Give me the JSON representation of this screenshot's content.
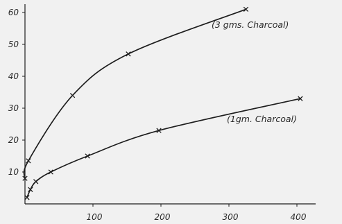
{
  "chart_data": {
    "type": "line",
    "title": "",
    "xlabel": "",
    "ylabel": "",
    "xlim": [
      0,
      440
    ],
    "ylim": [
      0,
      62
    ],
    "grid": false,
    "x_ticks": [
      100,
      200,
      300,
      400
    ],
    "y_ticks": [
      10,
      20,
      30,
      40,
      50,
      60
    ],
    "series": [
      {
        "name": "(3 gms. Charcoal)",
        "x": [
          0,
          5,
          70,
          152,
          325
        ],
        "y": [
          8,
          13.5,
          34,
          47,
          61
        ]
      },
      {
        "name": "(1gm. Charcoal)",
        "x": [
          3,
          8,
          16,
          38,
          92,
          197,
          405
        ],
        "y": [
          2,
          4.5,
          7,
          10,
          15,
          23,
          33
        ]
      }
    ],
    "colors": {
      "line": "#1e1e1e",
      "background": "#f1f1f1"
    }
  }
}
